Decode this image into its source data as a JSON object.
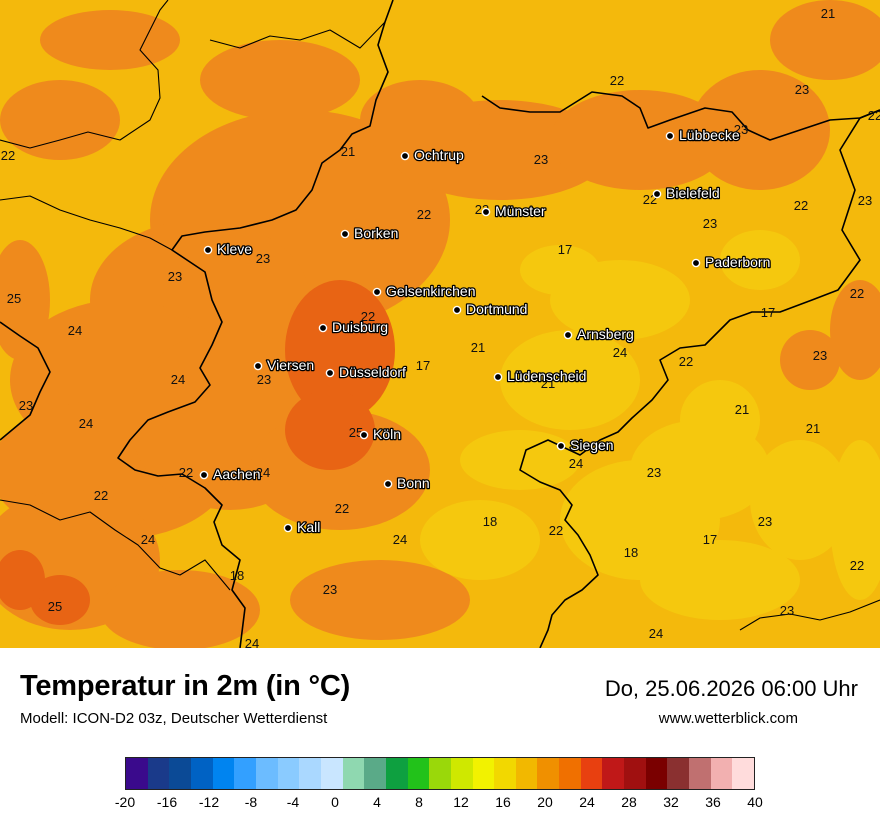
{
  "title": "Temperatur in 2m (in °C)",
  "model": "Modell: ICON-D2 03z, Deutscher Wetterdienst",
  "datetime": "Do, 25.06.2026 06:00 Uhr",
  "website": "www.wetterblick.com",
  "cities": [
    {
      "name": "Ochtrup"
    },
    {
      "name": "Lübbecke"
    },
    {
      "name": "Bielefeld"
    },
    {
      "name": "Münster"
    },
    {
      "name": "Borken"
    },
    {
      "name": "Kleve"
    },
    {
      "name": "Paderborn"
    },
    {
      "name": "Gelsenkirchen"
    },
    {
      "name": "Dortmund"
    },
    {
      "name": "Duisburg"
    },
    {
      "name": "Arnsberg"
    },
    {
      "name": "Viersen"
    },
    {
      "name": "Düsseldorf"
    },
    {
      "name": "Lüdenscheid"
    },
    {
      "name": "Köln"
    },
    {
      "name": "Siegen"
    },
    {
      "name": "Aachen"
    },
    {
      "name": "Bonn"
    },
    {
      "name": "Kall"
    }
  ],
  "temperatures": [
    "21",
    "22",
    "23",
    "22",
    "21",
    "23",
    "22",
    "23",
    "22",
    "22",
    "23",
    "22",
    "23",
    "22",
    "23",
    "17",
    "23",
    "23",
    "25",
    "17",
    "24",
    "22",
    "21",
    "24",
    "23",
    "17",
    "22",
    "21",
    "23",
    "24",
    "23",
    "25",
    "21",
    "21",
    "24",
    "24",
    "22",
    "24",
    "23",
    "22",
    "18",
    "22",
    "24",
    "18",
    "17",
    "22",
    "24",
    "23",
    "18",
    "22",
    "25",
    "23",
    "24",
    "24",
    "23"
  ],
  "legend": {
    "colors": [
      "#3a0a8c",
      "#1a3a8a",
      "#0b4a96",
      "#0062c4",
      "#0084f0",
      "#33a0ff",
      "#6cbcff",
      "#8acbff",
      "#aad8ff",
      "#c9e6ff",
      "#8fd8b0",
      "#5aaa88",
      "#0ea040",
      "#22c21a",
      "#9ad80a",
      "#cfe800",
      "#f2f200",
      "#f2d800",
      "#f2b800",
      "#f09000",
      "#f07000",
      "#e84010",
      "#c01818",
      "#a01010",
      "#7a0000",
      "#8a3030",
      "#c07070",
      "#f2b0b0",
      "#ffdcdc"
    ],
    "ticks": [
      "-20",
      "-16",
      "-12",
      "-8",
      "-4",
      "0",
      "4",
      "8",
      "12",
      "16",
      "20",
      "24",
      "28",
      "32",
      "36",
      "40"
    ]
  }
}
